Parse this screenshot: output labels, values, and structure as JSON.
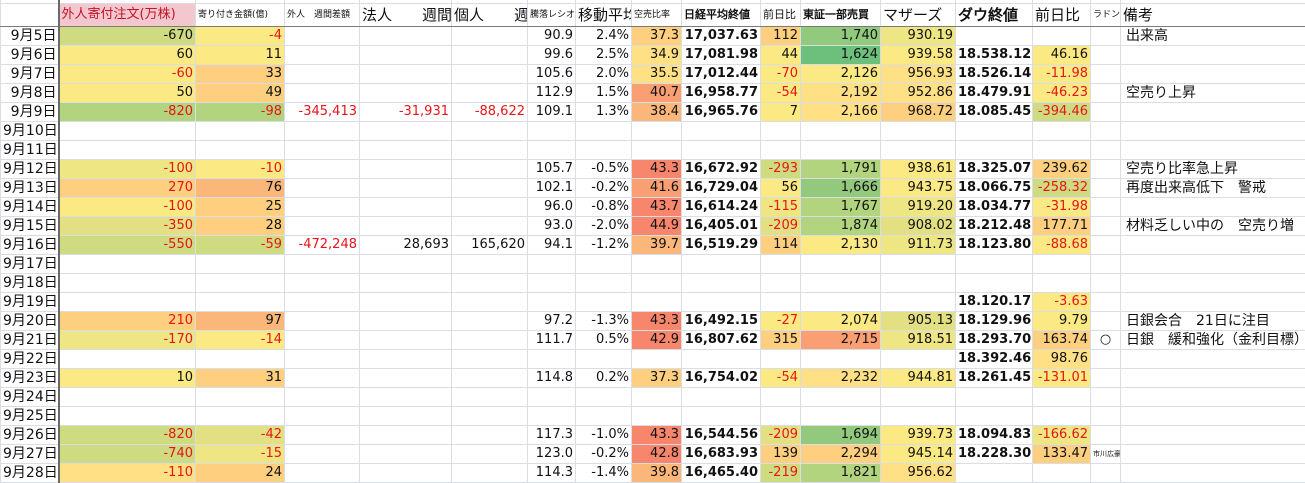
{
  "palette": {
    "g1": "#6dc07c",
    "g2": "#93c97d",
    "g3": "#b3d47f",
    "g4": "#cfdb80",
    "g5": "#e2e082",
    "ly": "#eee583",
    "y": "#fbe983",
    "y2": "#ffe084",
    "o1": "#fdcf7e",
    "o2": "#fbb679",
    "o3": "#f99f73",
    "r": "#f8866d",
    "pink": "#f4c7cf",
    "red_text": "#e8141b"
  },
  "headers": [
    "",
    "外人寄付注文(万株)",
    "寄り付き金額(億)",
    "外人　週間差額",
    "法人　　週間",
    "個人　　週間",
    "騰落レシオ",
    "移動平均",
    "空売比率",
    "日経平均終値",
    "前日比",
    "東証一部売買",
    "マザーズ",
    "ダウ終値",
    "前日比",
    "ラドン",
    "備考"
  ],
  "rows": [
    {
      "date": "9月5日",
      "cells": [
        "-670",
        "-4",
        "",
        "",
        "",
        "90.9",
        "2.4%",
        "37.3",
        "17,037.63",
        "112",
        "1,740",
        "930.19",
        "",
        "",
        "",
        "出来高"
      ],
      "bg": [
        "g4",
        "y",
        "",
        "",
        "",
        "",
        "",
        "o1",
        "",
        "o1",
        "g2",
        "ly",
        "",
        "",
        "",
        ""
      ],
      "red": [
        1
      ]
    },
    {
      "date": "9月6日",
      "cells": [
        "60",
        "11",
        "",
        "",
        "",
        "99.6",
        "2.5%",
        "34.9",
        "17,081.98",
        "44",
        "1,624",
        "939.58",
        "18.538.12",
        "46.16",
        "",
        ""
      ],
      "bg": [
        "y",
        "y",
        "",
        "",
        "",
        "",
        "",
        "y2",
        "",
        "y",
        "g1",
        "y",
        "",
        "y",
        "",
        ""
      ],
      "red": []
    },
    {
      "date": "9月7日",
      "cells": [
        "-60",
        "33",
        "",
        "",
        "",
        "105.6",
        "2.0%",
        "35.5",
        "17,012.44",
        "-70",
        "2,126",
        "956.93",
        "18.526.14",
        "-11.98",
        "",
        ""
      ],
      "bg": [
        "y",
        "o1",
        "",
        "",
        "",
        "",
        "",
        "y2",
        "",
        "y",
        "y",
        "y2",
        "",
        "y",
        "",
        ""
      ],
      "red": [
        0,
        9,
        13
      ]
    },
    {
      "date": "9月8日",
      "cells": [
        "50",
        "49",
        "",
        "",
        "",
        "112.9",
        "1.5%",
        "40.7",
        "16,958.77",
        "-54",
        "2,192",
        "952.86",
        "18.479.91",
        "-46.23",
        "",
        "空売り上昇"
      ],
      "bg": [
        "y",
        "o1",
        "",
        "",
        "",
        "",
        "",
        "o3",
        "",
        "y",
        "y2",
        "y2",
        "",
        "y",
        "",
        ""
      ],
      "red": [
        9,
        13
      ]
    },
    {
      "date": "9月9日",
      "cells": [
        "-820",
        "-98",
        "-345,413",
        "-31,931",
        "-88,622",
        "109.1",
        "1.3%",
        "38.4",
        "16,965.76",
        "7",
        "2,166",
        "968.72",
        "18.085.45",
        "-394.46",
        "",
        ""
      ],
      "bg": [
        "g3",
        "g3",
        "",
        "",
        "",
        "",
        "",
        "o2",
        "",
        "y",
        "y2",
        "o1",
        "",
        "g4",
        "",
        ""
      ],
      "red": [
        0,
        1,
        2,
        3,
        4,
        13
      ]
    },
    {
      "date": "9月10日",
      "cells": [],
      "bg": [],
      "red": []
    },
    {
      "date": "9月11日",
      "cells": [],
      "bg": [],
      "red": []
    },
    {
      "date": "9月12日",
      "cells": [
        "-100",
        "-10",
        "",
        "",
        "",
        "105.7",
        "-0.5%",
        "43.3",
        "16,672.92",
        "-293",
        "1,791",
        "938.61",
        "18.325.07",
        "239.62",
        "",
        "空売り比率急上昇"
      ],
      "bg": [
        "ly",
        "y",
        "",
        "",
        "",
        "",
        "",
        "r",
        "",
        "g4",
        "g3",
        "y",
        "",
        "o1",
        "",
        ""
      ],
      "red": [
        0,
        1,
        9
      ]
    },
    {
      "date": "9月13日",
      "cells": [
        "270",
        "76",
        "",
        "",
        "",
        "102.1",
        "-0.2%",
        "41.6",
        "16,729.04",
        "56",
        "1,666",
        "943.75",
        "18.066.75",
        "-258.32",
        "",
        "再度出来高低下　警戒"
      ],
      "bg": [
        "o1",
        "o2",
        "",
        "",
        "",
        "",
        "",
        "o3",
        "",
        "y",
        "g2",
        "y",
        "",
        "g4",
        "",
        ""
      ],
      "red": [
        0,
        13
      ]
    },
    {
      "date": "9月14日",
      "cells": [
        "-100",
        "25",
        "",
        "",
        "",
        "96.0",
        "-0.8%",
        "43.7",
        "16,614.24",
        "-115",
        "1,767",
        "919.20",
        "18.034.77",
        "-31.98",
        "",
        ""
      ],
      "bg": [
        "y",
        "o1",
        "",
        "",
        "",
        "",
        "",
        "r",
        "",
        "ly",
        "g3",
        "ly",
        "",
        "y",
        "",
        ""
      ],
      "red": [
        0,
        9,
        13
      ]
    },
    {
      "date": "9月15日",
      "cells": [
        "-350",
        "28",
        "",
        "",
        "",
        "93.0",
        "-2.0%",
        "44.9",
        "16,405.01",
        "-209",
        "1,874",
        "908.02",
        "18.212.48",
        "177.71",
        "",
        "材料乏しい中の　空売り増"
      ],
      "bg": [
        "g5",
        "o1",
        "",
        "",
        "",
        "",
        "",
        "r",
        "",
        "g5",
        "g3",
        "g5",
        "",
        "o1",
        "",
        ""
      ],
      "red": [
        0,
        9
      ]
    },
    {
      "date": "9月16日",
      "cells": [
        "-550",
        "-59",
        "-472,248",
        "28,693",
        "165,620",
        "94.1",
        "-1.2%",
        "39.7",
        "16,519.29",
        "114",
        "2,130",
        "911.73",
        "18.123.80",
        "-88.68",
        "",
        ""
      ],
      "bg": [
        "g4",
        "g4",
        "",
        "",
        "",
        "",
        "",
        "o2",
        "",
        "o1",
        "y",
        "ly",
        "",
        "y",
        "",
        ""
      ],
      "red": [
        0,
        1,
        2,
        13
      ]
    },
    {
      "date": "9月17日",
      "cells": [],
      "bg": [],
      "red": []
    },
    {
      "date": "9月18日",
      "cells": [],
      "bg": [],
      "red": []
    },
    {
      "date": "9月19日",
      "cells": [
        "",
        "",
        "",
        "",
        "",
        "",
        "",
        "",
        "",
        "",
        "",
        "",
        "18.120.17",
        "-3.63",
        "",
        ""
      ],
      "bg": [
        "",
        "",
        "",
        "",
        "",
        "",
        "",
        "",
        "",
        "",
        "",
        "",
        "",
        "y",
        "",
        ""
      ],
      "red": [
        13
      ]
    },
    {
      "date": "9月20日",
      "cells": [
        "210",
        "97",
        "",
        "",
        "",
        "97.2",
        "-1.3%",
        "43.3",
        "16,492.15",
        "-27",
        "2,074",
        "905.13",
        "18.129.96",
        "9.79",
        "",
        "日銀会合　21日に注目"
      ],
      "bg": [
        "o1",
        "o2",
        "",
        "",
        "",
        "",
        "",
        "r",
        "",
        "y",
        "y",
        "g5",
        "",
        "y",
        "",
        ""
      ],
      "red": [
        0,
        9
      ]
    },
    {
      "date": "9月21日",
      "cells": [
        "-170",
        "-14",
        "",
        "",
        "",
        "111.7",
        "0.5%",
        "42.9",
        "16,807.62",
        "315",
        "2,715",
        "918.51",
        "18.293.70",
        "163.74",
        "○",
        "日銀　緩和強化（金利目標）"
      ],
      "bg": [
        "ly",
        "y",
        "",
        "",
        "",
        "",
        "",
        "r",
        "",
        "o1",
        "o3",
        "ly",
        "",
        "o1",
        "",
        ""
      ],
      "red": [
        0,
        1
      ]
    },
    {
      "date": "9月22日",
      "cells": [
        "",
        "",
        "",
        "",
        "",
        "",
        "",
        "",
        "",
        "",
        "",
        "",
        "18.392.46",
        "98.76",
        "",
        ""
      ],
      "bg": [
        "",
        "",
        "",
        "",
        "",
        "",
        "",
        "",
        "",
        "",
        "",
        "",
        "",
        "y2",
        "",
        ""
      ],
      "red": []
    },
    {
      "date": "9月23日",
      "cells": [
        "10",
        "31",
        "",
        "",
        "",
        "114.8",
        "0.2%",
        "37.3",
        "16,754.02",
        "-54",
        "2,232",
        "944.81",
        "18.261.45",
        "-131.01",
        "",
        ""
      ],
      "bg": [
        "y",
        "o1",
        "",
        "",
        "",
        "",
        "",
        "o1",
        "",
        "y",
        "y2",
        "y",
        "",
        "y",
        "",
        ""
      ],
      "red": [
        9,
        13
      ]
    },
    {
      "date": "9月24日",
      "cells": [],
      "bg": [],
      "red": []
    },
    {
      "date": "9月25日",
      "cells": [],
      "bg": [],
      "red": []
    },
    {
      "date": "9月26日",
      "cells": [
        "-820",
        "-42",
        "",
        "",
        "",
        "117.3",
        "-1.0%",
        "43.3",
        "16,544.56",
        "-209",
        "1,694",
        "939.73",
        "18.094.83",
        "-166.62",
        "",
        ""
      ],
      "bg": [
        "g4",
        "g5",
        "",
        "",
        "",
        "",
        "",
        "r",
        "",
        "g5",
        "g2",
        "y",
        "",
        "ly",
        "",
        ""
      ],
      "red": [
        0,
        1,
        9,
        13
      ]
    },
    {
      "date": "9月27日",
      "cells": [
        "-740",
        "-15",
        "",
        "",
        "",
        "123.0",
        "-0.2%",
        "42.8",
        "16,683.93",
        "139",
        "2,294",
        "945.14",
        "18.228.30",
        "133.47",
        "市川広豪",
        ""
      ],
      "bg": [
        "g4",
        "ly",
        "",
        "",
        "",
        "",
        "",
        "r",
        "",
        "o1",
        "o1",
        "y",
        "",
        "o1",
        "",
        ""
      ],
      "red": [
        0,
        1
      ]
    },
    {
      "date": "9月28日",
      "cells": [
        "-110",
        "24",
        "",
        "",
        "",
        "114.3",
        "-1.4%",
        "39.8",
        "16,465.40",
        "-219",
        "1,821",
        "956.62",
        "",
        "",
        "",
        ""
      ],
      "bg": [
        "y2",
        "o1",
        "",
        "",
        "",
        "",
        "",
        "o2",
        "",
        "g4",
        "g3",
        "y2",
        "",
        "",
        "",
        ""
      ],
      "red": [
        0,
        9
      ]
    }
  ]
}
